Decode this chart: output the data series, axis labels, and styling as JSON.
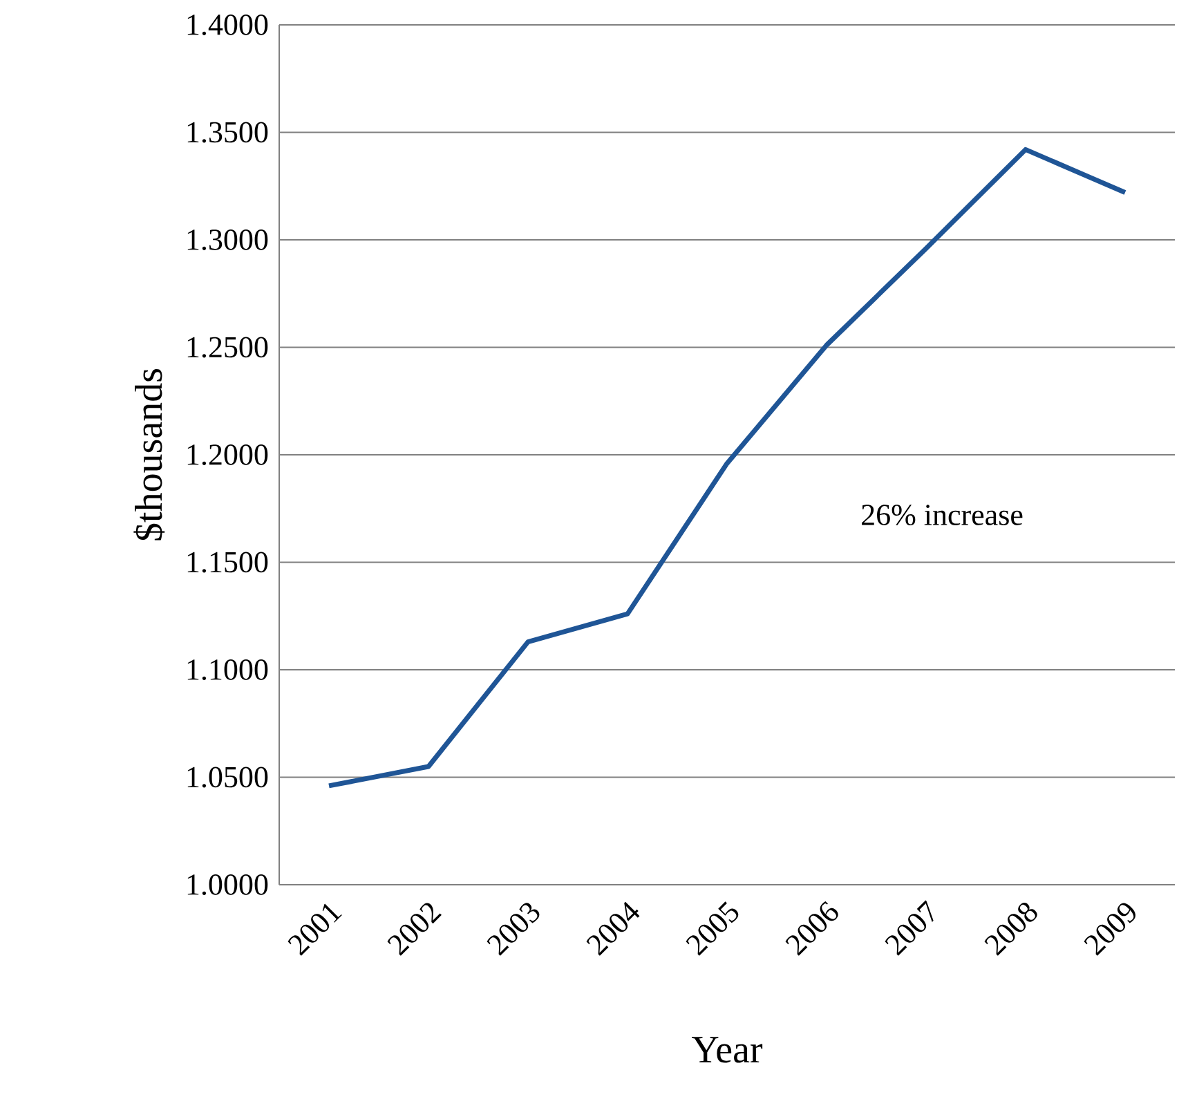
{
  "chart_data": {
    "type": "line",
    "xlabel": "Year",
    "ylabel": "$thousands",
    "categories": [
      "2001",
      "2002",
      "2003",
      "2004",
      "2005",
      "2006",
      "2007",
      "2008",
      "2009"
    ],
    "series": [
      {
        "color": "#1f5596",
        "values": [
          1.046,
          1.055,
          1.113,
          1.126,
          1.196,
          1.251,
          1.296,
          1.342,
          1.322
        ]
      }
    ],
    "ylim": [
      1.0,
      1.4
    ],
    "yticks": [
      {
        "value": 1.0,
        "label": "1.0000"
      },
      {
        "value": 1.05,
        "label": "1.0500"
      },
      {
        "value": 1.1,
        "label": "1.1000"
      },
      {
        "value": 1.15,
        "label": "1.1500"
      },
      {
        "value": 1.2,
        "label": "1.2000"
      },
      {
        "value": 1.25,
        "label": "1.2500"
      },
      {
        "value": 1.3,
        "label": "1.3000"
      },
      {
        "value": 1.35,
        "label": "1.3500"
      },
      {
        "value": 1.4,
        "label": "1.4000"
      }
    ],
    "grid": "y",
    "marker": "none",
    "line_style": "solid",
    "annotations": [
      "26% increase"
    ]
  }
}
